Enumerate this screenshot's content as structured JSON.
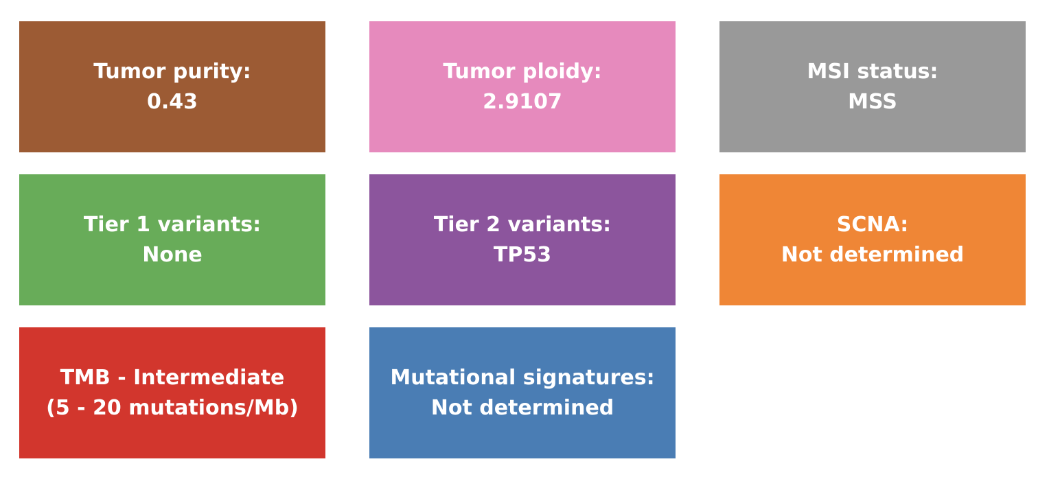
{
  "tiles": [
    {
      "label": "Tumor purity:",
      "value": "0.43",
      "color": "#9c5b34"
    },
    {
      "label": "Tumor ploidy:",
      "value": "2.9107",
      "color": "#e68abd"
    },
    {
      "label": "MSI status:",
      "value": "MSS",
      "color": "#999999"
    },
    {
      "label": "Tier 1 variants:",
      "value": "None",
      "color": "#68ac59"
    },
    {
      "label": "Tier 2 variants:",
      "value": "TP53",
      "color": "#8c559d"
    },
    {
      "label": "SCNA:",
      "value": "Not determined",
      "color": "#ef8636"
    },
    {
      "label": "TMB - Intermediate",
      "value": "(5 - 20 mutations/Mb)",
      "color": "#d2362d"
    },
    {
      "label": "Mutational signatures:",
      "value": "Not determined",
      "color": "#4a7db4"
    }
  ]
}
